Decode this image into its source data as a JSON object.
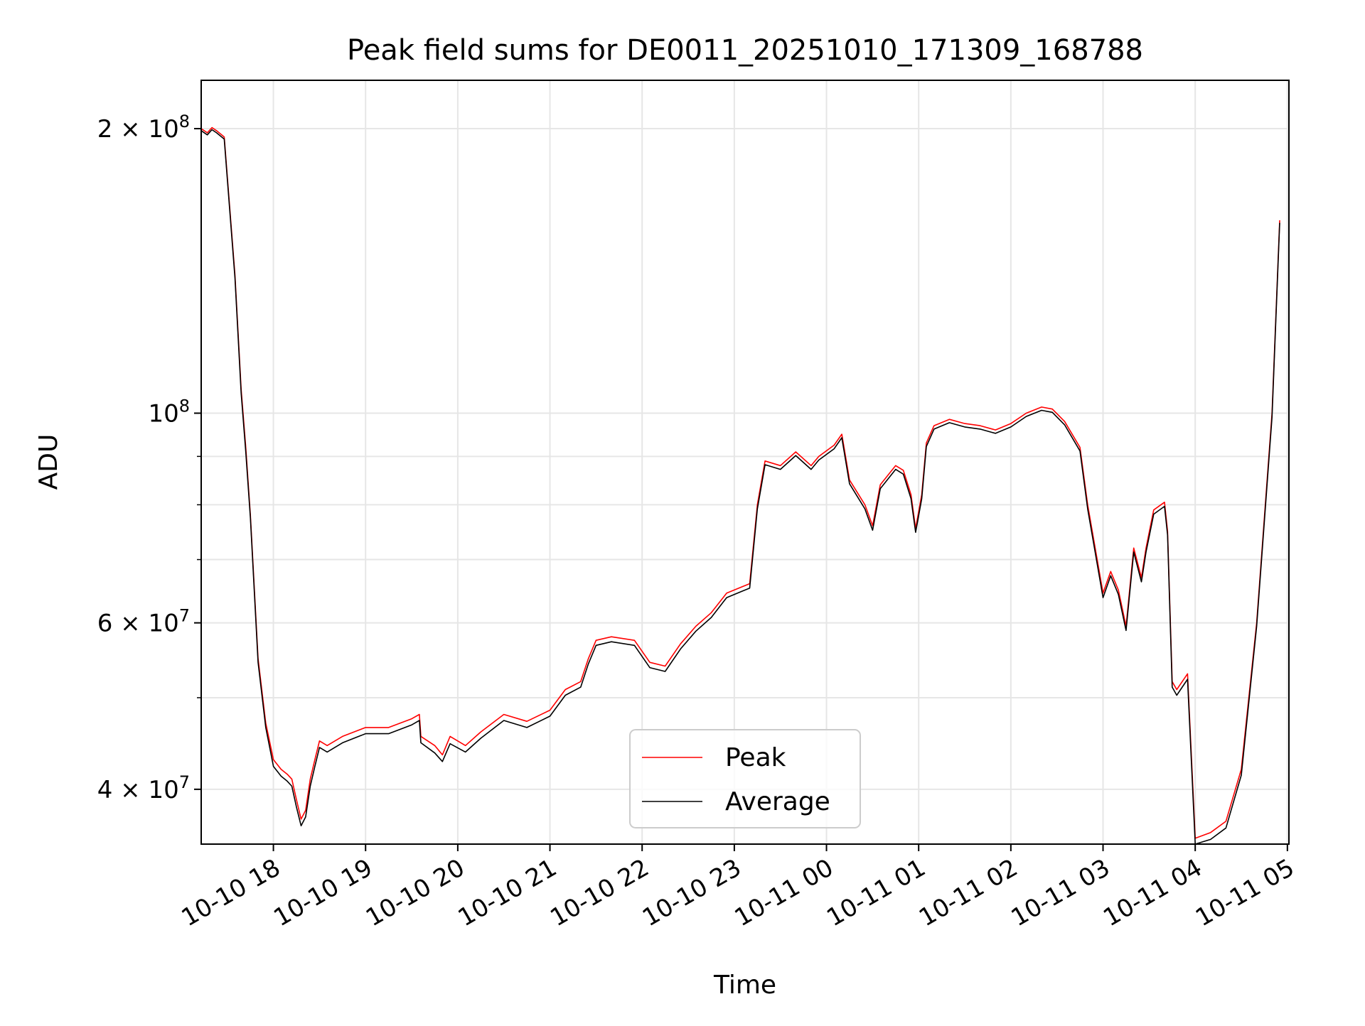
{
  "chart_data": {
    "type": "line",
    "title": "Peak field sums for DE0011_20251010_171309_168788",
    "xlabel": "Time",
    "ylabel": "ADU",
    "y_scale": "log",
    "ylim": [
      35000000,
      225000000
    ],
    "xlim": [
      "2025-10-10 17:13",
      "2025-10-11 05:01"
    ],
    "grid": true,
    "legend_position": "lower center",
    "x_ticks": [
      {
        "time": "2025-10-10 18:00",
        "label": "10-10 18"
      },
      {
        "time": "2025-10-10 19:00",
        "label": "10-10 19"
      },
      {
        "time": "2025-10-10 20:00",
        "label": "10-10 20"
      },
      {
        "time": "2025-10-10 21:00",
        "label": "10-10 21"
      },
      {
        "time": "2025-10-10 22:00",
        "label": "10-10 22"
      },
      {
        "time": "2025-10-10 23:00",
        "label": "10-10 23"
      },
      {
        "time": "2025-10-11 00:00",
        "label": "10-11 00"
      },
      {
        "time": "2025-10-11 01:00",
        "label": "10-11 01"
      },
      {
        "time": "2025-10-11 02:00",
        "label": "10-11 02"
      },
      {
        "time": "2025-10-11 03:00",
        "label": "10-11 03"
      },
      {
        "time": "2025-10-11 04:00",
        "label": "10-11 04"
      },
      {
        "time": "2025-10-11 05:00",
        "label": "10-11 05"
      }
    ],
    "y_ticks": [
      {
        "value": 40000000,
        "mantissa": "4",
        "exponent": "7"
      },
      {
        "value": 60000000,
        "mantissa": "6",
        "exponent": "7"
      },
      {
        "value": 100000000,
        "mantissa": "",
        "exponent": "8"
      },
      {
        "value": 200000000,
        "mantissa": "2",
        "exponent": "8"
      }
    ],
    "y_times": "×",
    "y_base": "10",
    "y_minor_ticks": [
      50000000,
      70000000,
      80000000,
      90000000
    ],
    "series": [
      {
        "name": "Peak",
        "color": "#ff0000",
        "x": [
          "2025-10-10 17:13",
          "2025-10-10 17:17",
          "2025-10-10 17:20",
          "2025-10-10 17:23",
          "2025-10-10 17:28",
          "2025-10-10 17:35",
          "2025-10-10 17:39",
          "2025-10-10 17:42",
          "2025-10-10 17:45",
          "2025-10-10 17:50",
          "2025-10-10 17:55",
          "2025-10-10 18:00",
          "2025-10-10 18:05",
          "2025-10-10 18:09",
          "2025-10-10 18:12",
          "2025-10-10 18:15",
          "2025-10-10 18:18",
          "2025-10-10 18:21",
          "2025-10-10 18:24",
          "2025-10-10 18:27",
          "2025-10-10 18:30",
          "2025-10-10 18:35",
          "2025-10-10 18:45",
          "2025-10-10 19:00",
          "2025-10-10 19:15",
          "2025-10-10 19:30",
          "2025-10-10 19:35",
          "2025-10-10 19:36",
          "2025-10-10 19:45",
          "2025-10-10 19:50",
          "2025-10-10 19:55",
          "2025-10-10 20:05",
          "2025-10-10 20:15",
          "2025-10-10 20:30",
          "2025-10-10 20:45",
          "2025-10-10 21:00",
          "2025-10-10 21:10",
          "2025-10-10 21:20",
          "2025-10-10 21:25",
          "2025-10-10 21:30",
          "2025-10-10 21:40",
          "2025-10-10 21:55",
          "2025-10-10 22:05",
          "2025-10-10 22:15",
          "2025-10-10 22:25",
          "2025-10-10 22:35",
          "2025-10-10 22:45",
          "2025-10-10 22:55",
          "2025-10-10 23:05",
          "2025-10-10 23:10",
          "2025-10-10 23:15",
          "2025-10-10 23:20",
          "2025-10-10 23:30",
          "2025-10-10 23:40",
          "2025-10-10 23:50",
          "2025-10-10 23:55",
          "2025-10-11 00:05",
          "2025-10-11 00:10",
          "2025-10-11 00:15",
          "2025-10-11 00:25",
          "2025-10-11 00:30",
          "2025-10-11 00:35",
          "2025-10-11 00:45",
          "2025-10-11 00:50",
          "2025-10-11 00:55",
          "2025-10-11 00:58",
          "2025-10-11 01:02",
          "2025-10-11 01:05",
          "2025-10-11 01:10",
          "2025-10-11 01:20",
          "2025-10-11 01:30",
          "2025-10-11 01:40",
          "2025-10-11 01:50",
          "2025-10-11 02:00",
          "2025-10-11 02:10",
          "2025-10-11 02:20",
          "2025-10-11 02:27",
          "2025-10-11 02:35",
          "2025-10-11 02:45",
          "2025-10-11 02:50",
          "2025-10-11 03:00",
          "2025-10-11 03:05",
          "2025-10-11 03:10",
          "2025-10-11 03:15",
          "2025-10-11 03:20",
          "2025-10-11 03:25",
          "2025-10-11 03:28",
          "2025-10-11 03:33",
          "2025-10-11 03:40",
          "2025-10-11 03:42",
          "2025-10-11 03:45",
          "2025-10-11 03:48",
          "2025-10-11 03:55",
          "2025-10-11 04:00",
          "2025-10-11 04:10",
          "2025-10-11 04:20",
          "2025-10-11 04:30",
          "2025-10-11 04:40",
          "2025-10-11 04:50",
          "2025-10-11 04:55"
        ],
        "y": [
          200000000,
          198000000,
          200500000,
          199000000,
          196000000,
          140000000,
          106000000,
          92000000,
          78000000,
          55000000,
          47000000,
          43000000,
          42000000,
          41500000,
          41000000,
          39000000,
          37200000,
          38000000,
          41000000,
          43000000,
          45000000,
          44500000,
          45500000,
          46500000,
          46500000,
          47500000,
          48000000,
          45500000,
          44500000,
          43500000,
          45500000,
          44500000,
          46000000,
          48000000,
          47200000,
          48500000,
          51000000,
          52000000,
          55000000,
          57500000,
          58000000,
          57500000,
          54500000,
          54000000,
          57000000,
          59500000,
          61500000,
          64500000,
          65500000,
          66000000,
          80000000,
          89000000,
          88000000,
          91000000,
          88000000,
          90000000,
          92500000,
          95000000,
          85000000,
          80000000,
          76000000,
          84000000,
          88000000,
          87000000,
          82000000,
          75500000,
          82000000,
          93000000,
          97000000,
          98500000,
          97500000,
          97000000,
          96000000,
          97500000,
          100000000,
          101500000,
          101000000,
          98000000,
          92000000,
          80000000,
          64500000,
          68000000,
          65000000,
          59500000,
          72000000,
          67000000,
          72000000,
          79000000,
          80500000,
          75000000,
          52000000,
          51000000,
          53000000,
          35500000,
          36000000,
          37000000,
          42000000,
          60000000,
          100000000,
          160000000
        ]
      },
      {
        "name": "Average",
        "color": "#000000",
        "x": [
          "2025-10-10 17:13",
          "2025-10-10 17:17",
          "2025-10-10 17:20",
          "2025-10-10 17:23",
          "2025-10-10 17:28",
          "2025-10-10 17:35",
          "2025-10-10 17:39",
          "2025-10-10 17:42",
          "2025-10-10 17:45",
          "2025-10-10 17:50",
          "2025-10-10 17:55",
          "2025-10-10 18:00",
          "2025-10-10 18:05",
          "2025-10-10 18:09",
          "2025-10-10 18:12",
          "2025-10-10 18:15",
          "2025-10-10 18:18",
          "2025-10-10 18:21",
          "2025-10-10 18:24",
          "2025-10-10 18:27",
          "2025-10-10 18:30",
          "2025-10-10 18:35",
          "2025-10-10 18:45",
          "2025-10-10 19:00",
          "2025-10-10 19:15",
          "2025-10-10 19:30",
          "2025-10-10 19:35",
          "2025-10-10 19:36",
          "2025-10-10 19:45",
          "2025-10-10 19:50",
          "2025-10-10 19:55",
          "2025-10-10 20:05",
          "2025-10-10 20:15",
          "2025-10-10 20:30",
          "2025-10-10 20:45",
          "2025-10-10 21:00",
          "2025-10-10 21:10",
          "2025-10-10 21:20",
          "2025-10-10 21:25",
          "2025-10-10 21:30",
          "2025-10-10 21:40",
          "2025-10-10 21:55",
          "2025-10-10 22:05",
          "2025-10-10 22:15",
          "2025-10-10 22:25",
          "2025-10-10 22:35",
          "2025-10-10 22:45",
          "2025-10-10 22:55",
          "2025-10-10 23:05",
          "2025-10-10 23:10",
          "2025-10-10 23:15",
          "2025-10-10 23:20",
          "2025-10-10 23:30",
          "2025-10-10 23:40",
          "2025-10-10 23:50",
          "2025-10-10 23:55",
          "2025-10-11 00:05",
          "2025-10-11 00:10",
          "2025-10-11 00:15",
          "2025-10-11 00:25",
          "2025-10-11 00:30",
          "2025-10-11 00:35",
          "2025-10-11 00:45",
          "2025-10-11 00:50",
          "2025-10-11 00:55",
          "2025-10-11 00:58",
          "2025-10-11 01:02",
          "2025-10-11 01:05",
          "2025-10-11 01:10",
          "2025-10-11 01:20",
          "2025-10-11 01:30",
          "2025-10-11 01:40",
          "2025-10-11 01:50",
          "2025-10-11 02:00",
          "2025-10-11 02:10",
          "2025-10-11 02:20",
          "2025-10-11 02:27",
          "2025-10-11 02:35",
          "2025-10-11 02:45",
          "2025-10-11 02:50",
          "2025-10-11 03:00",
          "2025-10-11 03:05",
          "2025-10-11 03:10",
          "2025-10-11 03:15",
          "2025-10-11 03:20",
          "2025-10-11 03:25",
          "2025-10-11 03:28",
          "2025-10-11 03:33",
          "2025-10-11 03:40",
          "2025-10-11 03:42",
          "2025-10-11 03:45",
          "2025-10-11 03:48",
          "2025-10-11 03:55",
          "2025-10-11 04:00",
          "2025-10-11 04:10",
          "2025-10-11 04:20",
          "2025-10-11 04:30",
          "2025-10-11 04:40",
          "2025-10-11 04:50",
          "2025-10-11 04:55"
        ],
        "y": [
          199000000,
          197000000,
          199500000,
          198000000,
          195000000,
          139000000,
          105000000,
          91000000,
          77500000,
          54500000,
          46500000,
          42300000,
          41300000,
          40800000,
          40300000,
          38300000,
          36600000,
          37400000,
          40300000,
          42300000,
          44300000,
          43800000,
          44800000,
          45800000,
          45800000,
          46800000,
          47300000,
          44800000,
          43700000,
          42800000,
          44700000,
          43800000,
          45300000,
          47300000,
          46500000,
          47800000,
          50300000,
          51300000,
          54300000,
          56800000,
          57300000,
          56800000,
          53800000,
          53300000,
          56300000,
          58800000,
          60800000,
          63800000,
          64800000,
          65300000,
          79200000,
          88200000,
          87200000,
          90200000,
          87200000,
          89200000,
          91700000,
          94200000,
          84200000,
          79200000,
          75200000,
          83200000,
          87200000,
          86200000,
          81200000,
          74800000,
          81200000,
          92200000,
          96200000,
          97700000,
          96700000,
          96200000,
          95200000,
          96700000,
          99200000,
          100700000,
          100200000,
          97200000,
          91200000,
          79200000,
          63800000,
          67300000,
          64300000,
          58900000,
          71300000,
          66300000,
          71300000,
          78200000,
          79700000,
          74300000,
          51300000,
          50300000,
          52300000,
          35000000,
          35400000,
          36400000,
          41400000,
          59500000,
          99000000,
          159000000
        ]
      }
    ]
  }
}
